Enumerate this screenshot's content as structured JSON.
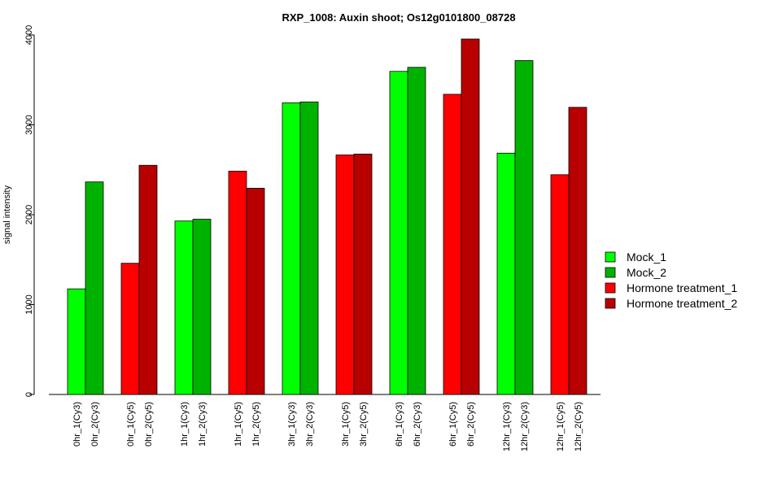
{
  "chart_data": {
    "type": "bar",
    "title": "RXP_1008: Auxin shoot; Os12g0101800_08728",
    "ylabel": "signal intensity",
    "xlabel": "",
    "ylim": [
      0,
      4000
    ],
    "yticks": [
      0,
      1000,
      2000,
      3000,
      4000
    ],
    "grid": false,
    "legend_position": "right",
    "legend": [
      {
        "name": "Mock_1",
        "color": "#00ff00"
      },
      {
        "name": "Mock_2",
        "color": "#00b200"
      },
      {
        "name": "Hormone treatment_1",
        "color": "#ff0000"
      },
      {
        "name": "Hormone treatment_2",
        "color": "#b80000"
      }
    ],
    "groups": [
      {
        "bars": [
          {
            "label": "0hr_1(Cy3)",
            "value": 1175,
            "color": "#00ff00"
          },
          {
            "label": "0hr_2(Cy3)",
            "value": 2365,
            "color": "#00b200"
          }
        ]
      },
      {
        "bars": [
          {
            "label": "0hr_1(Cy5)",
            "value": 1460,
            "color": "#ff0000"
          },
          {
            "label": "0hr_2(Cy5)",
            "value": 2550,
            "color": "#b80000"
          }
        ]
      },
      {
        "bars": [
          {
            "label": "1hr_1(Cy3)",
            "value": 1930,
            "color": "#00ff00"
          },
          {
            "label": "1hr_2(Cy3)",
            "value": 1950,
            "color": "#00b200"
          }
        ]
      },
      {
        "bars": [
          {
            "label": "1hr_1(Cy5)",
            "value": 2485,
            "color": "#ff0000"
          },
          {
            "label": "1hr_2(Cy5)",
            "value": 2295,
            "color": "#b80000"
          }
        ]
      },
      {
        "bars": [
          {
            "label": "3hr_1(Cy3)",
            "value": 3245,
            "color": "#00ff00"
          },
          {
            "label": "3hr_2(Cy3)",
            "value": 3255,
            "color": "#00b200"
          }
        ]
      },
      {
        "bars": [
          {
            "label": "3hr_1(Cy5)",
            "value": 2665,
            "color": "#ff0000"
          },
          {
            "label": "3hr_2(Cy5)",
            "value": 2675,
            "color": "#b80000"
          }
        ]
      },
      {
        "bars": [
          {
            "label": "6hr_1(Cy3)",
            "value": 3595,
            "color": "#00ff00"
          },
          {
            "label": "6hr_2(Cy3)",
            "value": 3640,
            "color": "#00b200"
          }
        ]
      },
      {
        "bars": [
          {
            "label": "6hr_1(Cy5)",
            "value": 3340,
            "color": "#ff0000"
          },
          {
            "label": "6hr_2(Cy5)",
            "value": 3955,
            "color": "#b80000"
          }
        ]
      },
      {
        "bars": [
          {
            "label": "12hr_1(Cy3)",
            "value": 2685,
            "color": "#00ff00"
          },
          {
            "label": "12hr_2(Cy3)",
            "value": 3715,
            "color": "#00b200"
          }
        ]
      },
      {
        "bars": [
          {
            "label": "12hr_1(Cy5)",
            "value": 2445,
            "color": "#ff0000"
          },
          {
            "label": "12hr_2(Cy5)",
            "value": 3195,
            "color": "#b80000"
          }
        ]
      }
    ]
  }
}
